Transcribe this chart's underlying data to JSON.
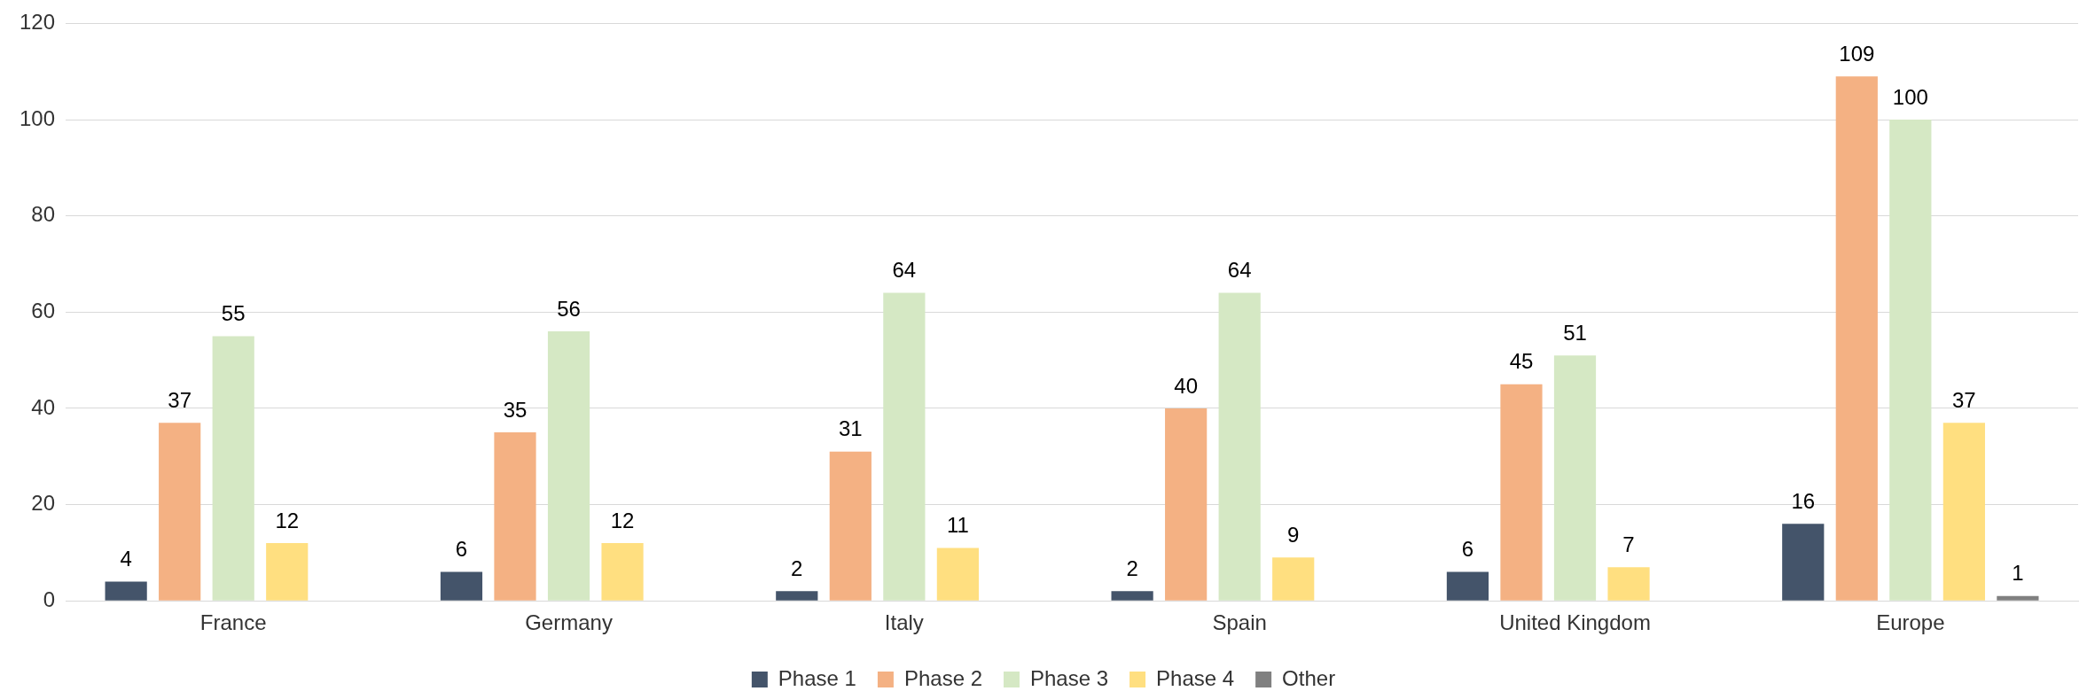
{
  "chart_data": {
    "type": "bar",
    "categories": [
      "France",
      "Germany",
      "Italy",
      "Spain",
      "United Kingdom",
      "Europe"
    ],
    "series": [
      {
        "name": "Phase 1",
        "color": "#44546a",
        "values": [
          4,
          6,
          2,
          2,
          6,
          16
        ]
      },
      {
        "name": "Phase 2",
        "color": "#f4b183",
        "values": [
          37,
          35,
          31,
          40,
          45,
          109
        ]
      },
      {
        "name": "Phase 3",
        "color": "#d5e8c4",
        "values": [
          55,
          56,
          64,
          64,
          51,
          100
        ]
      },
      {
        "name": "Phase 4",
        "color": "#ffdf80",
        "values": [
          12,
          12,
          11,
          9,
          7,
          37
        ]
      },
      {
        "name": "Other",
        "color": "#808080",
        "values": [
          null,
          null,
          null,
          null,
          null,
          1
        ]
      }
    ],
    "ylim": [
      0,
      120
    ],
    "yticks": [
      0,
      20,
      40,
      60,
      80,
      100,
      120
    ],
    "grid": "y",
    "legend": "bottom",
    "data_labels": true
  }
}
